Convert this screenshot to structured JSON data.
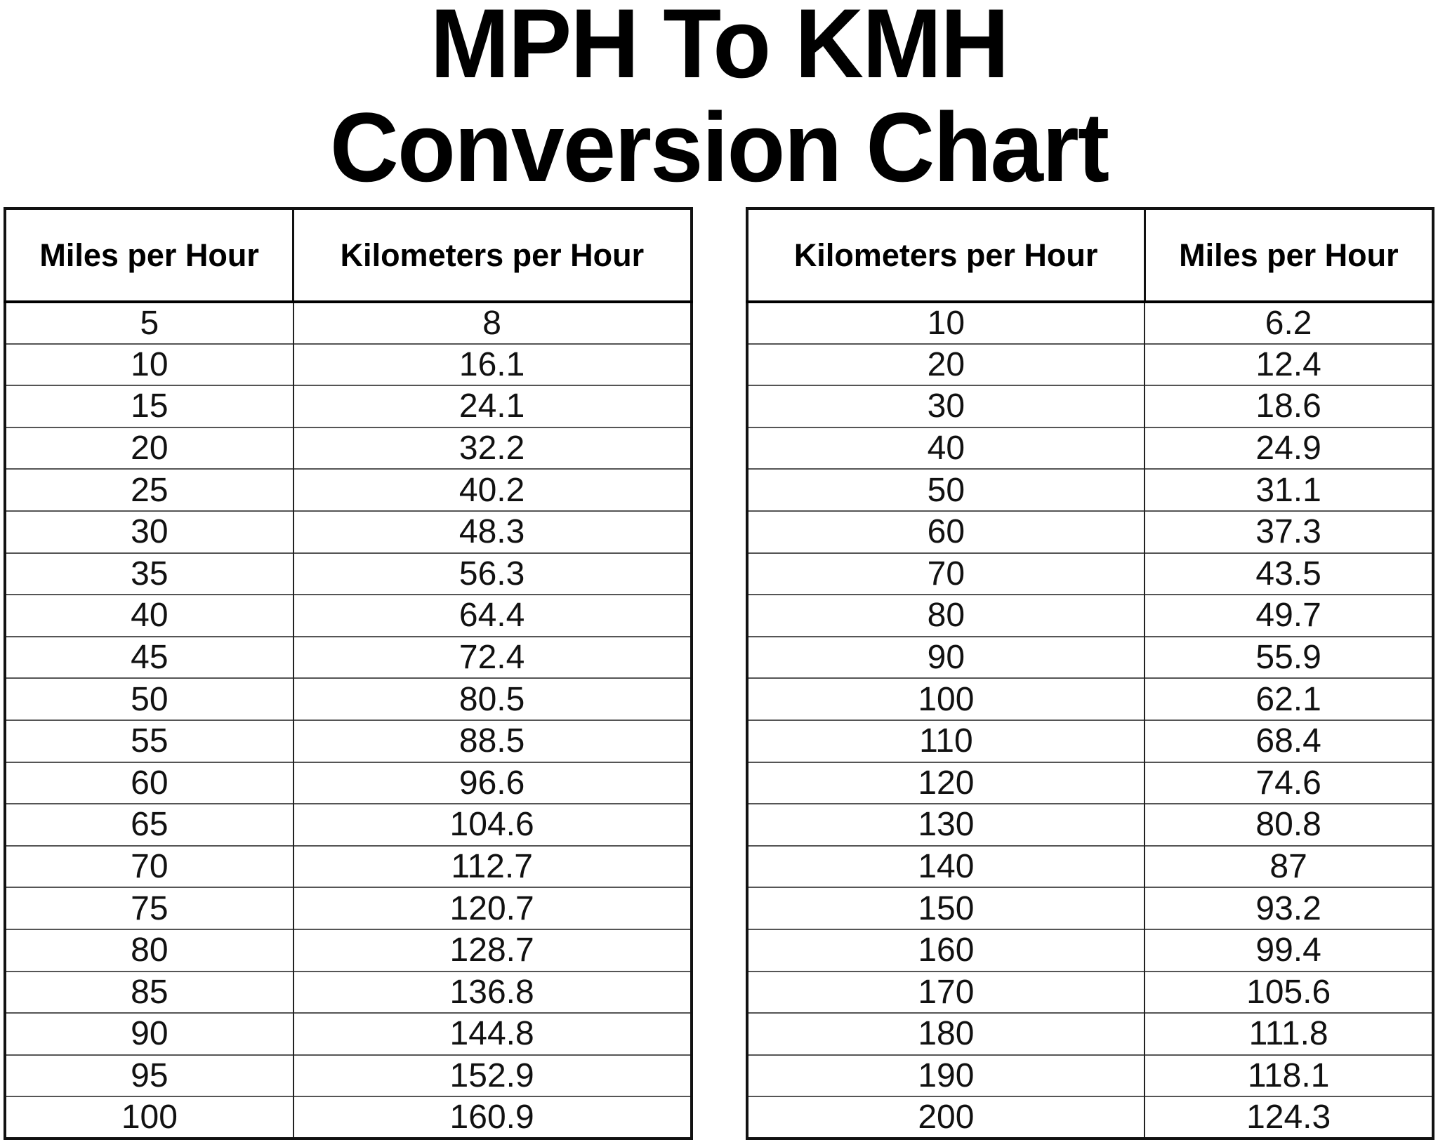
{
  "title": {
    "line1": "MPH To KMH",
    "line2": "Conversion Chart"
  },
  "tables": [
    {
      "name": "mph-to-kmh",
      "headers": [
        "Miles per Hour",
        "Kilometers per Hour"
      ],
      "rows": [
        [
          "5",
          "8"
        ],
        [
          "10",
          "16.1"
        ],
        [
          "15",
          "24.1"
        ],
        [
          "20",
          "32.2"
        ],
        [
          "25",
          "40.2"
        ],
        [
          "30",
          "48.3"
        ],
        [
          "35",
          "56.3"
        ],
        [
          "40",
          "64.4"
        ],
        [
          "45",
          "72.4"
        ],
        [
          "50",
          "80.5"
        ],
        [
          "55",
          "88.5"
        ],
        [
          "60",
          "96.6"
        ],
        [
          "65",
          "104.6"
        ],
        [
          "70",
          "112.7"
        ],
        [
          "75",
          "120.7"
        ],
        [
          "80",
          "128.7"
        ],
        [
          "85",
          "136.8"
        ],
        [
          "90",
          "144.8"
        ],
        [
          "95",
          "152.9"
        ],
        [
          "100",
          "160.9"
        ]
      ]
    },
    {
      "name": "kmh-to-mph",
      "headers": [
        "Kilometers per Hour",
        "Miles per Hour"
      ],
      "rows": [
        [
          "10",
          "6.2"
        ],
        [
          "20",
          "12.4"
        ],
        [
          "30",
          "18.6"
        ],
        [
          "40",
          "24.9"
        ],
        [
          "50",
          "31.1"
        ],
        [
          "60",
          "37.3"
        ],
        [
          "70",
          "43.5"
        ],
        [
          "80",
          "49.7"
        ],
        [
          "90",
          "55.9"
        ],
        [
          "100",
          "62.1"
        ],
        [
          "110",
          "68.4"
        ],
        [
          "120",
          "74.6"
        ],
        [
          "130",
          "80.8"
        ],
        [
          "140",
          "87"
        ],
        [
          "150",
          "93.2"
        ],
        [
          "160",
          "99.4"
        ],
        [
          "170",
          "105.6"
        ],
        [
          "180",
          "111.8"
        ],
        [
          "190",
          "118.1"
        ],
        [
          "200",
          "124.3"
        ]
      ]
    }
  ]
}
